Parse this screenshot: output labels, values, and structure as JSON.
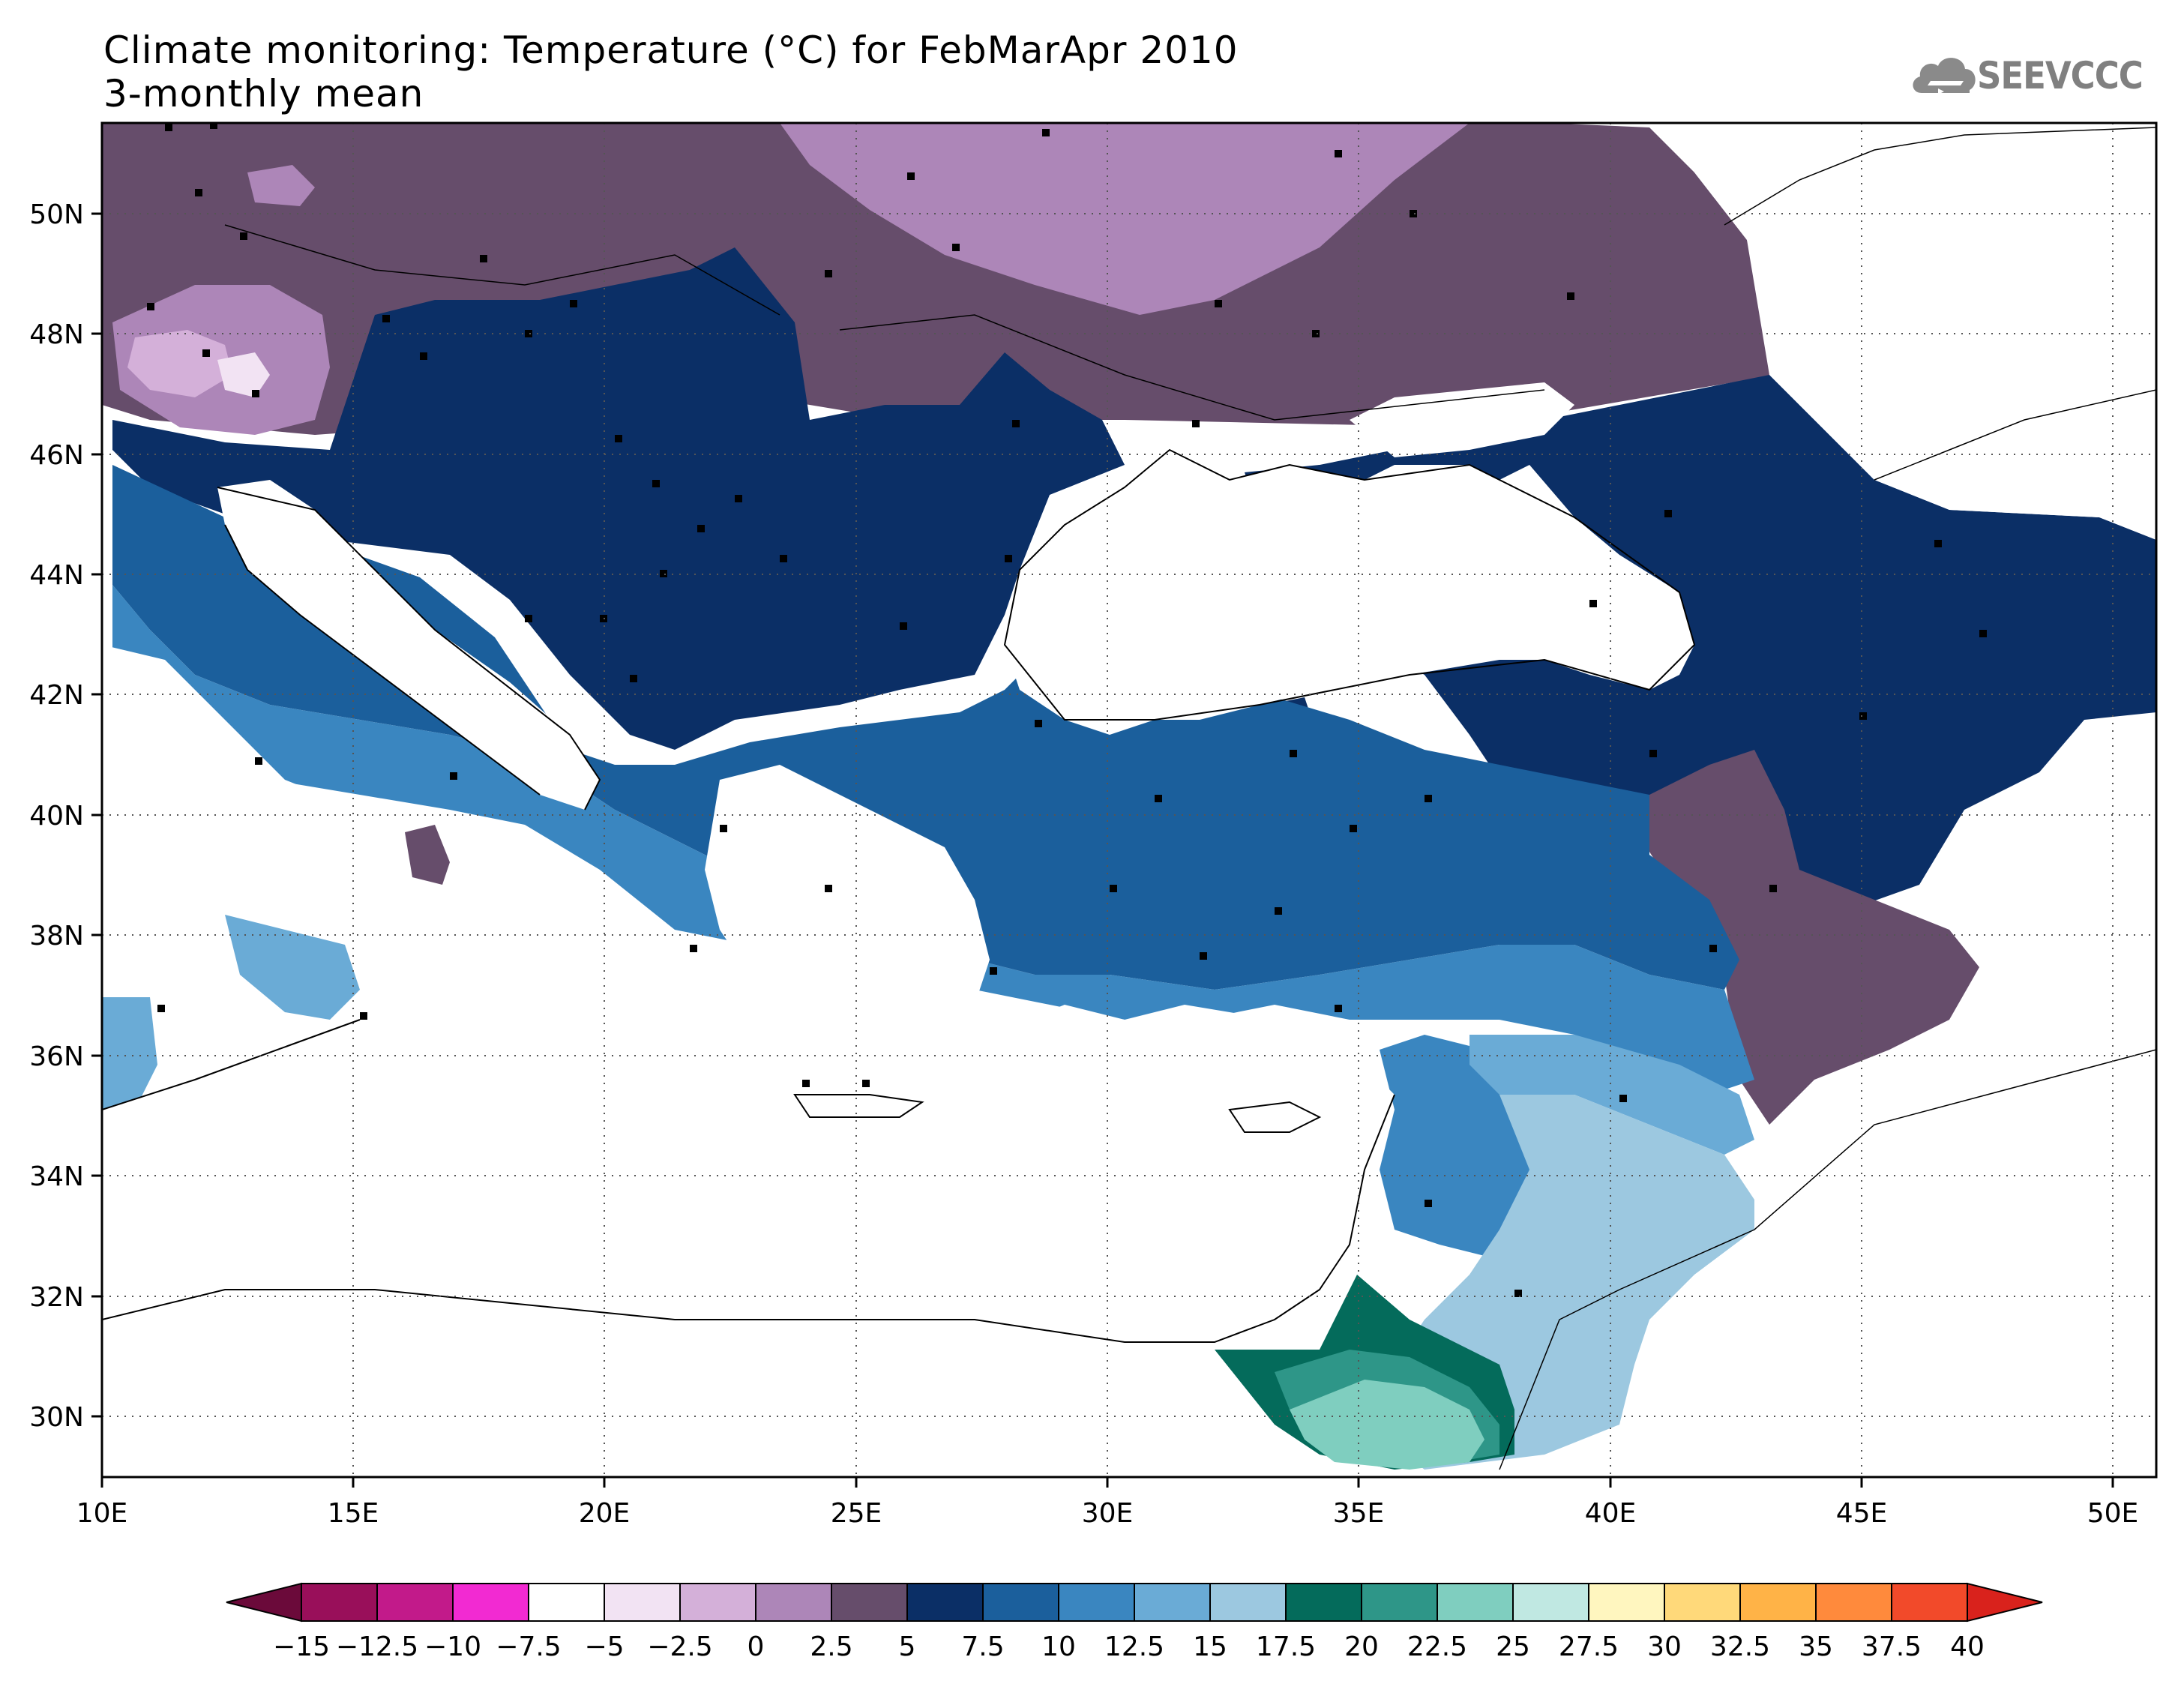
{
  "title_line1": "Climate monitoring: Temperature (°C) for FebMarApr 2010",
  "title_line2": "3-monthly mean",
  "logo": {
    "text": "SEEVCCC",
    "icon": "cloud-logo-icon"
  },
  "map": {
    "lon_range": [
      10,
      51
    ],
    "lat_range": [
      29,
      51.5
    ],
    "lon_ticks": [
      "10E",
      "15E",
      "20E",
      "25E",
      "30E",
      "35E",
      "40E",
      "45E",
      "50E"
    ],
    "lat_ticks": [
      "30N",
      "32N",
      "34N",
      "36N",
      "38N",
      "40N",
      "42N",
      "44N",
      "46N",
      "48N",
      "50N"
    ]
  },
  "colorbar": {
    "tick_labels": [
      "−15",
      "−12.5",
      "−10",
      "−7.5",
      "−5",
      "−2.5",
      "0",
      "2.5",
      "5",
      "7.5",
      "10",
      "12.5",
      "15",
      "17.5",
      "20",
      "22.5",
      "25",
      "27.5",
      "30",
      "32.5",
      "35",
      "37.5",
      "40"
    ],
    "low_arrow_color": "#6b0a3a",
    "high_arrow_color": "#d9221c",
    "colors": [
      "#990f5a",
      "#c21a8a",
      "#f22ad2",
      "#ffffff",
      "#f2e3f3",
      "#d4b0d9",
      "#ad86b8",
      "#664d6b",
      "#0b2f66",
      "#1b5f9c",
      "#3a86c0",
      "#6aabd6",
      "#9cc8e0",
      "#046b5b",
      "#2e9688",
      "#7fcebf",
      "#c0e8e2",
      "#fff6bf",
      "#ffd97a",
      "#ffb347",
      "#ff8a3c",
      "#f24a2a"
    ]
  },
  "chart_data": {
    "type": "heatmap",
    "title": "Climate monitoring: Temperature (°C) for FebMarApr 2010",
    "subtitle": "3-monthly mean",
    "xlim": [
      10,
      51
    ],
    "ylim": [
      29,
      51.5
    ],
    "xlabel": "",
    "ylabel": "",
    "legend": "bottom colorbar",
    "grid": true
  }
}
